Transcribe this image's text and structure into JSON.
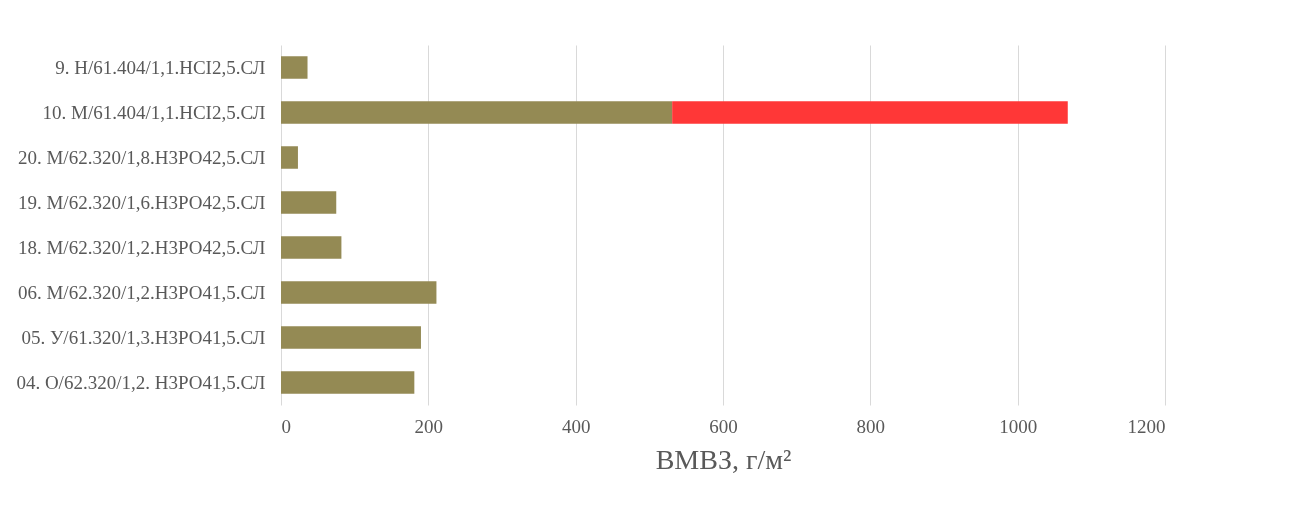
{
  "chart_data": {
    "type": "bar",
    "orientation": "horizontal",
    "stacked": true,
    "xlabel": "ВМВЗ, г/м²",
    "categories": [
      "9. Н/61.404/1,1.НСI2,5.СЛ",
      "10. М/61.404/1,1.НСI2,5.СЛ",
      "20. М/62.320/1,8.Н3РО42,5.СЛ",
      "19. М/62.320/1,6.Н3РО42,5.СЛ",
      "18. М/62.320/1,2.Н3РО42,5.СЛ",
      "06. М/62.320/1,2.Н3РО41,5.СЛ",
      "05. У/61.320/1,3.Н3РО41,5.СЛ",
      "04. О/62.320/1,2. Н3РО41,5.СЛ"
    ],
    "series": [
      {
        "color": "#948a54",
        "values": [
          36,
          531,
          23,
          75,
          82,
          211,
          190,
          181
        ]
      },
      {
        "color": "#ff3737",
        "values": [
          null,
          537,
          null,
          null,
          null,
          null,
          null,
          null
        ]
      }
    ],
    "xlim": [
      0,
      1200
    ],
    "xticks": [
      0,
      200,
      400,
      600,
      800,
      1000,
      1200
    ],
    "grid": "x",
    "legend": false
  }
}
